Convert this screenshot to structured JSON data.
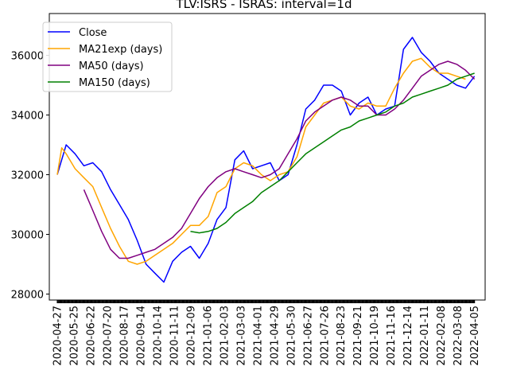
{
  "chart_data": {
    "type": "line",
    "title": "TLV:ISRS - ISRAS: interval=1d",
    "xlabel": "",
    "ylabel": "",
    "ylim": [
      27800,
      37400
    ],
    "y_ticks": [
      {
        "value": 28000,
        "label": "28000"
      },
      {
        "value": 30000,
        "label": "30000"
      },
      {
        "value": 32000,
        "label": "32000"
      },
      {
        "value": 34000,
        "label": "34000"
      },
      {
        "value": 36000,
        "label": "36000"
      }
    ],
    "x_tick_labels": [
      "2020-04-27",
      "2020-05-25",
      "2020-06-22",
      "2020-07-20",
      "2020-08-17",
      "2020-09-14",
      "2020-10-14",
      "2020-11-11",
      "2020-12-09",
      "2021-01-06",
      "2021-02-03",
      "2021-03-03",
      "2021-04-01",
      "2021-04-29",
      "2021-05-30",
      "2021-06-27",
      "2021-07-26",
      "2021-08-23",
      "2021-09-21",
      "2021-10-19",
      "2021-11-16",
      "2021-12-14",
      "2022-01-11",
      "2022-02-08",
      "2022-03-08",
      "2022-04-05"
    ],
    "legend": {
      "position": "top-left"
    },
    "grid": false,
    "series": [
      {
        "name": "Close",
        "color": "#0000ff",
        "points": [
          [
            0,
            32000
          ],
          [
            1,
            33000
          ],
          [
            2,
            32700
          ],
          [
            3,
            32300
          ],
          [
            4,
            32400
          ],
          [
            5,
            32100
          ],
          [
            6,
            31500
          ],
          [
            7,
            31000
          ],
          [
            8,
            30500
          ],
          [
            9,
            29800
          ],
          [
            10,
            29000
          ],
          [
            11,
            28700
          ],
          [
            12,
            28400
          ],
          [
            13,
            29100
          ],
          [
            14,
            29400
          ],
          [
            15,
            29600
          ],
          [
            16,
            29200
          ],
          [
            17,
            29700
          ],
          [
            18,
            30500
          ],
          [
            19,
            30900
          ],
          [
            20,
            32500
          ],
          [
            21,
            32800
          ],
          [
            22,
            32200
          ],
          [
            23,
            32300
          ],
          [
            24,
            32400
          ],
          [
            25,
            31800
          ],
          [
            26,
            32000
          ],
          [
            27,
            33000
          ],
          [
            28,
            34200
          ],
          [
            29,
            34500
          ],
          [
            30,
            35000
          ],
          [
            31,
            35000
          ],
          [
            32,
            34800
          ],
          [
            33,
            34000
          ],
          [
            34,
            34400
          ],
          [
            35,
            34600
          ],
          [
            36,
            34000
          ],
          [
            37,
            34200
          ],
          [
            38,
            34300
          ],
          [
            39,
            36200
          ],
          [
            40,
            36600
          ],
          [
            41,
            36100
          ],
          [
            42,
            35800
          ],
          [
            43,
            35400
          ],
          [
            44,
            35200
          ],
          [
            45,
            35000
          ],
          [
            46,
            34900
          ],
          [
            47,
            35300
          ]
        ]
      },
      {
        "name": "MA21exp (days)",
        "color": "#ffa500",
        "points": [
          [
            0,
            32000
          ],
          [
            0.5,
            32900
          ],
          [
            1,
            32700
          ],
          [
            2,
            32200
          ],
          [
            3,
            31900
          ],
          [
            4,
            31600
          ],
          [
            5,
            30900
          ],
          [
            6,
            30200
          ],
          [
            7,
            29600
          ],
          [
            8,
            29100
          ],
          [
            9,
            29000
          ],
          [
            10,
            29100
          ],
          [
            11,
            29300
          ],
          [
            12,
            29500
          ],
          [
            13,
            29700
          ],
          [
            14,
            30000
          ],
          [
            15,
            30300
          ],
          [
            16,
            30300
          ],
          [
            17,
            30600
          ],
          [
            18,
            31400
          ],
          [
            19,
            31600
          ],
          [
            20,
            32200
          ],
          [
            21,
            32400
          ],
          [
            22,
            32300
          ],
          [
            23,
            32000
          ],
          [
            24,
            31800
          ],
          [
            25,
            32000
          ],
          [
            26,
            32100
          ],
          [
            27,
            32600
          ],
          [
            28,
            33600
          ],
          [
            29,
            34000
          ],
          [
            30,
            34400
          ],
          [
            31,
            34500
          ],
          [
            32,
            34600
          ],
          [
            33,
            34300
          ],
          [
            34,
            34200
          ],
          [
            35,
            34400
          ],
          [
            36,
            34300
          ],
          [
            37,
            34300
          ],
          [
            38,
            34900
          ],
          [
            39,
            35400
          ],
          [
            40,
            35800
          ],
          [
            41,
            35900
          ],
          [
            42,
            35600
          ],
          [
            43,
            35400
          ],
          [
            44,
            35400
          ],
          [
            45,
            35300
          ],
          [
            46,
            35200
          ]
        ]
      },
      {
        "name": "MA50 (days)",
        "color": "#800080",
        "points": [
          [
            3,
            31500
          ],
          [
            4,
            30800
          ],
          [
            5,
            30100
          ],
          [
            6,
            29500
          ],
          [
            7,
            29200
          ],
          [
            8,
            29200
          ],
          [
            9,
            29300
          ],
          [
            10,
            29400
          ],
          [
            11,
            29500
          ],
          [
            12,
            29700
          ],
          [
            13,
            29900
          ],
          [
            14,
            30200
          ],
          [
            15,
            30700
          ],
          [
            16,
            31200
          ],
          [
            17,
            31600
          ],
          [
            18,
            31900
          ],
          [
            19,
            32100
          ],
          [
            20,
            32200
          ],
          [
            21,
            32100
          ],
          [
            22,
            32000
          ],
          [
            23,
            31900
          ],
          [
            24,
            32000
          ],
          [
            25,
            32200
          ],
          [
            26,
            32700
          ],
          [
            27,
            33200
          ],
          [
            28,
            33800
          ],
          [
            29,
            34100
          ],
          [
            30,
            34300
          ],
          [
            31,
            34500
          ],
          [
            32,
            34600
          ],
          [
            33,
            34500
          ],
          [
            34,
            34300
          ],
          [
            35,
            34300
          ],
          [
            36,
            34000
          ],
          [
            37,
            34000
          ],
          [
            38,
            34200
          ],
          [
            39,
            34500
          ],
          [
            40,
            34900
          ],
          [
            41,
            35300
          ],
          [
            42,
            35500
          ],
          [
            43,
            35700
          ],
          [
            44,
            35800
          ],
          [
            45,
            35700
          ],
          [
            46,
            35500
          ],
          [
            47,
            35200
          ]
        ]
      },
      {
        "name": "MA150 (days)",
        "color": "#008000",
        "points": [
          [
            15,
            30100
          ],
          [
            16,
            30050
          ],
          [
            17,
            30100
          ],
          [
            18,
            30200
          ],
          [
            19,
            30400
          ],
          [
            20,
            30700
          ],
          [
            21,
            30900
          ],
          [
            22,
            31100
          ],
          [
            23,
            31400
          ],
          [
            24,
            31600
          ],
          [
            25,
            31800
          ],
          [
            26,
            32100
          ],
          [
            27,
            32400
          ],
          [
            28,
            32700
          ],
          [
            29,
            32900
          ],
          [
            30,
            33100
          ],
          [
            31,
            33300
          ],
          [
            32,
            33500
          ],
          [
            33,
            33600
          ],
          [
            34,
            33800
          ],
          [
            35,
            33900
          ],
          [
            36,
            34000
          ],
          [
            37,
            34100
          ],
          [
            38,
            34300
          ],
          [
            39,
            34400
          ],
          [
            40,
            34600
          ],
          [
            41,
            34700
          ],
          [
            42,
            34800
          ],
          [
            43,
            34900
          ],
          [
            44,
            35000
          ],
          [
            45,
            35200
          ],
          [
            46,
            35300
          ],
          [
            47,
            35400
          ]
        ]
      }
    ]
  }
}
